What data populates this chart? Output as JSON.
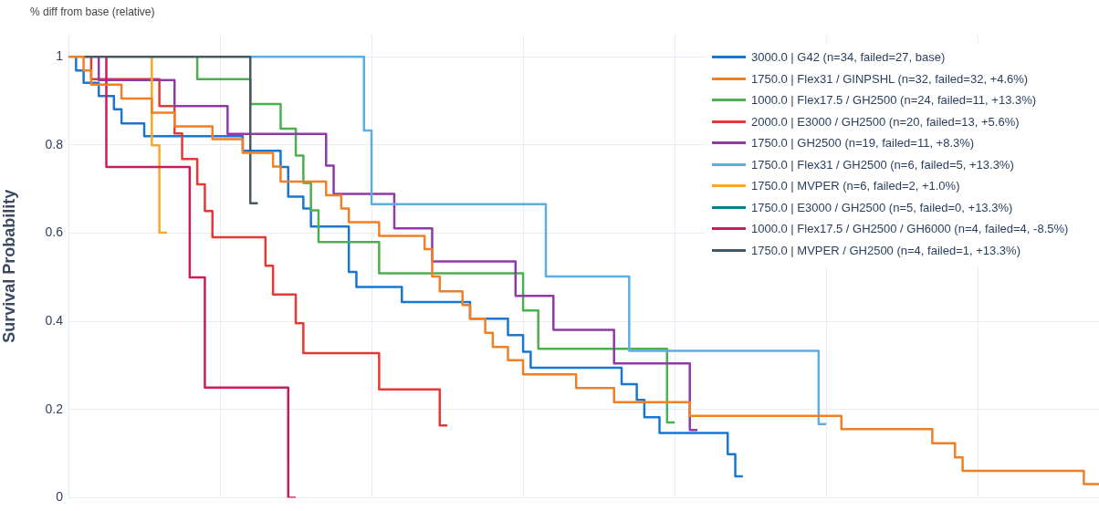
{
  "chart_data": {
    "type": "step",
    "title": "% diff from base (relative)",
    "ylabel": "Survival Probability",
    "categories": [
      null,
      null,
      null,
      null,
      null,
      null,
      null,
      null,
      null,
      null,
      null,
      null,
      null,
      null,
      null,
      null,
      null,
      null,
      null,
      null,
      null,
      null,
      null,
      null,
      null,
      null,
      null,
      null,
      null,
      null,
      null,
      null,
      null,
      null,
      null,
      null,
      null,
      null,
      null,
      null,
      null,
      null,
      null,
      null,
      null,
      null,
      null,
      null,
      null,
      null,
      null,
      null,
      null,
      null,
      null,
      null,
      null,
      null,
      null,
      null,
      null,
      null,
      null,
      null,
      null,
      null,
      null,
      null,
      null,
      null,
      null,
      null,
      null,
      null,
      null,
      null,
      null,
      null,
      null,
      null,
      null,
      null,
      null,
      null,
      null,
      null,
      null,
      null,
      null,
      null,
      null,
      null,
      null,
      null,
      null,
      null,
      null,
      null,
      null,
      null,
      null,
      null,
      null,
      null,
      null,
      null,
      null,
      null,
      null,
      null,
      null,
      null,
      null,
      null,
      null,
      null,
      null,
      null,
      null,
      null,
      null,
      null,
      null,
      null,
      null,
      null,
      null,
      null,
      null,
      null,
      null,
      null,
      null,
      null,
      null,
      null,
      null
    ],
    "ylim": [
      0,
      1.05
    ],
    "yticks": [
      0,
      0.2,
      0.4,
      0.6,
      0.8,
      1
    ],
    "tick_labels": "y",
    "grid": true,
    "legend": "top right",
    "series": [
      {
        "name": "3000.0 | G42 (n=34, failed=27, base)",
        "color": "#1976d2",
        "values": [
          null,
          1,
          0.969,
          0.941,
          0.941,
          0.911,
          0.911,
          0.881,
          0.849,
          0.849,
          0.849,
          0.82,
          0.82,
          0.82,
          0.82,
          0.82,
          0.82,
          0.82,
          0.82,
          0.82,
          0.82,
          0.82,
          0.82,
          0.82,
          0.787,
          0.787,
          0.787,
          0.787,
          0.787,
          0.75,
          0.683,
          0.683,
          0.656,
          0.615,
          0.615,
          0.615,
          0.615,
          0.615,
          0.512,
          0.478,
          0.478,
          0.478,
          0.478,
          0.478,
          0.478,
          0.444,
          0.444,
          0.444,
          0.444,
          0.444,
          0.444,
          0.444,
          0.444,
          0.444,
          0.406,
          0.406,
          0.406,
          0.406,
          0.406,
          0.369,
          0.369,
          0.331,
          0.295,
          0.295,
          0.295,
          0.295,
          0.295,
          0.295,
          0.295,
          0.295,
          0.295,
          0.295,
          0.295,
          0.295,
          0.258,
          0.258,
          0.222,
          0.183,
          0.183,
          0.147,
          0.147,
          0.147,
          0.147,
          0.147,
          0.147,
          0.147,
          0.147,
          0.147,
          0.099,
          0.049,
          null,
          null,
          null,
          null,
          null,
          null,
          null,
          null,
          null,
          null,
          null,
          null,
          null,
          null,
          null,
          null,
          null,
          null,
          null,
          null,
          null,
          null,
          null,
          null,
          null,
          null,
          null,
          null,
          null,
          null,
          null,
          null,
          null,
          null,
          null,
          null,
          null,
          null,
          null,
          null,
          null,
          null,
          null,
          null,
          null,
          null,
          null
        ]
      },
      {
        "name": "1750.0 | Flex31 / GINPSHL (n=32, failed=32, +4.6%)",
        "color": "#f07f26",
        "values": [
          1,
          1,
          1,
          0.969,
          0.937,
          0.937,
          0.937,
          0.937,
          0.905,
          0.905,
          0.905,
          0.905,
          0.873,
          0.873,
          0.873,
          0.842,
          0.842,
          0.842,
          0.842,
          0.842,
          0.813,
          0.813,
          0.813,
          0.813,
          0.782,
          0.782,
          0.782,
          0.782,
          0.751,
          0.717,
          0.717,
          0.717,
          0.717,
          0.717,
          0.717,
          0.686,
          0.686,
          0.656,
          0.625,
          0.625,
          0.625,
          0.625,
          0.594,
          0.594,
          0.594,
          0.594,
          0.594,
          0.594,
          0.564,
          0.502,
          0.468,
          0.468,
          0.468,
          0.437,
          0.406,
          0.406,
          0.374,
          0.342,
          0.342,
          0.312,
          0.312,
          0.28,
          0.28,
          0.28,
          0.28,
          0.28,
          0.28,
          0.28,
          0.249,
          0.249,
          0.249,
          0.249,
          0.249,
          0.217,
          0.217,
          0.217,
          0.217,
          0.217,
          0.217,
          0.217,
          0.217,
          0.217,
          0.217,
          0.186,
          0.186,
          0.186,
          0.186,
          0.186,
          0.186,
          0.186,
          0.186,
          0.186,
          0.186,
          0.186,
          0.186,
          0.186,
          0.186,
          0.186,
          0.186,
          0.186,
          0.186,
          0.186,
          0.186,
          0.156,
          0.156,
          0.156,
          0.156,
          0.156,
          0.156,
          0.156,
          0.156,
          0.156,
          0.156,
          0.156,
          0.156,
          0.124,
          0.124,
          0.124,
          0.092,
          0.061,
          0.061,
          0.061,
          0.061,
          0.061,
          0.061,
          0.061,
          0.061,
          0.061,
          0.061,
          0.061,
          0.061,
          0.061,
          0.061,
          0.061,
          0.061,
          0.031,
          0.031
        ]
      },
      {
        "name": "1000.0 | Flex17.5 / GH2500 (n=24, failed=11, +13.3%)",
        "color": "#4caf50",
        "values": [
          null,
          null,
          null,
          null,
          null,
          null,
          null,
          null,
          null,
          null,
          null,
          null,
          null,
          null,
          null,
          null,
          null,
          1,
          0.949,
          0.949,
          0.949,
          0.949,
          0.949,
          0.949,
          0.949,
          0.893,
          0.893,
          0.893,
          0.893,
          0.837,
          0.837,
          0.776,
          0.714,
          0.652,
          0.58,
          0.58,
          0.58,
          0.58,
          0.58,
          0.58,
          0.58,
          0.58,
          0.509,
          0.509,
          0.509,
          0.509,
          0.509,
          0.509,
          0.509,
          0.509,
          0.509,
          0.509,
          0.509,
          0.509,
          0.509,
          0.509,
          0.509,
          0.509,
          0.509,
          0.509,
          0.509,
          0.425,
          0.425,
          0.338,
          0.338,
          0.338,
          0.338,
          0.338,
          0.338,
          0.338,
          0.338,
          0.338,
          0.338,
          0.338,
          0.338,
          0.338,
          0.338,
          0.338,
          0.338,
          0.338,
          0.171,
          null,
          null,
          null,
          null,
          null,
          null,
          null,
          null,
          null,
          null,
          null,
          null,
          null,
          null,
          null,
          null,
          null,
          null,
          null,
          null,
          null,
          null,
          null,
          null,
          null,
          null,
          null,
          null,
          null,
          null,
          null,
          null,
          null,
          null,
          null,
          null,
          null,
          null,
          null,
          null,
          null,
          null,
          null,
          null,
          null,
          null,
          null,
          null,
          null,
          null,
          null,
          null,
          null,
          null,
          null,
          null
        ]
      },
      {
        "name": "2000.0 | E3000 / GH2500 (n=20, failed=13, +5.6%)",
        "color": "#e53935",
        "values": [
          null,
          null,
          null,
          1,
          0.949,
          0.949,
          0.949,
          0.949,
          0.949,
          0.949,
          0.949,
          0.949,
          0.949,
          0.888,
          0.888,
          0.826,
          0.768,
          0.768,
          0.711,
          0.65,
          0.591,
          0.591,
          0.591,
          0.591,
          0.591,
          0.591,
          0.591,
          0.526,
          0.461,
          0.461,
          0.461,
          0.396,
          0.328,
          0.328,
          0.328,
          0.328,
          0.328,
          0.328,
          0.328,
          0.328,
          0.328,
          0.328,
          0.246,
          0.246,
          0.246,
          0.246,
          0.246,
          0.246,
          0.246,
          0.246,
          0.164,
          null,
          null,
          null,
          null,
          null,
          null,
          null,
          null,
          null,
          null,
          null,
          null,
          null,
          null,
          null,
          null,
          null,
          null,
          null,
          null,
          null,
          null,
          null,
          null,
          null,
          null,
          null,
          null,
          null,
          null,
          null,
          null,
          null,
          null,
          null,
          null,
          null,
          null,
          null,
          null,
          null,
          null,
          null,
          null,
          null,
          null,
          null,
          null,
          null,
          null,
          null,
          null,
          null,
          null,
          null,
          null,
          null,
          null,
          null,
          null,
          null,
          null,
          null,
          null,
          null,
          null,
          null,
          null,
          null,
          null,
          null,
          null,
          null,
          null,
          null,
          null,
          null,
          null,
          null,
          null,
          null,
          null,
          null,
          null,
          null,
          null
        ]
      },
      {
        "name": "1750.0 | GH2500 (n=19, failed=11, +8.3%)",
        "color": "#8e3ba6",
        "values": [
          null,
          null,
          null,
          null,
          1,
          0.947,
          0.947,
          0.947,
          0.947,
          0.947,
          0.947,
          0.947,
          0.947,
          0.947,
          0.947,
          0.888,
          0.888,
          0.888,
          0.888,
          0.888,
          0.888,
          0.888,
          0.825,
          0.825,
          0.825,
          0.825,
          0.825,
          0.825,
          0.825,
          0.825,
          0.825,
          0.825,
          0.825,
          0.825,
          0.825,
          0.753,
          0.689,
          0.689,
          0.689,
          0.689,
          0.689,
          0.689,
          0.689,
          0.689,
          0.611,
          0.611,
          0.611,
          0.611,
          0.611,
          0.536,
          0.536,
          0.536,
          0.536,
          0.536,
          0.536,
          0.536,
          0.536,
          0.536,
          0.536,
          0.536,
          0.458,
          0.458,
          0.458,
          0.458,
          0.458,
          0.381,
          0.381,
          0.381,
          0.381,
          0.381,
          0.381,
          0.381,
          0.381,
          0.305,
          0.305,
          0.305,
          0.305,
          0.305,
          0.305,
          0.305,
          0.305,
          0.305,
          0.305,
          0.154,
          null,
          null,
          null,
          null,
          null,
          null,
          null,
          null,
          null,
          null,
          null,
          null,
          null,
          null,
          null,
          null,
          null,
          null,
          null,
          null,
          null,
          null,
          null,
          null,
          null,
          null,
          null,
          null,
          null,
          null,
          null,
          null,
          null,
          null,
          null,
          null,
          null,
          null,
          null,
          null,
          null,
          null,
          null,
          null,
          null,
          null,
          null,
          null,
          null,
          null,
          null,
          null,
          null
        ]
      },
      {
        "name": "1750.0 | Flex31 / GH2500 (n=6, failed=5, +13.3%)",
        "color": "#5dade2",
        "values": [
          null,
          null,
          null,
          null,
          null,
          null,
          null,
          null,
          null,
          null,
          null,
          null,
          null,
          null,
          null,
          null,
          null,
          null,
          null,
          null,
          null,
          null,
          null,
          null,
          1,
          1,
          1,
          1,
          1,
          1,
          1,
          1,
          1,
          1,
          1,
          1,
          1,
          1,
          1,
          1,
          0.833,
          0.666,
          0.666,
          0.666,
          0.666,
          0.666,
          0.666,
          0.666,
          0.666,
          0.666,
          0.666,
          0.666,
          0.666,
          0.666,
          0.666,
          0.666,
          0.666,
          0.666,
          0.666,
          0.666,
          0.666,
          0.666,
          0.666,
          0.666,
          0.502,
          0.502,
          0.502,
          0.502,
          0.502,
          0.502,
          0.502,
          0.502,
          0.502,
          0.502,
          0.502,
          0.333,
          0.333,
          0.333,
          0.333,
          0.333,
          0.333,
          0.333,
          0.333,
          0.333,
          0.333,
          0.333,
          0.333,
          0.333,
          0.333,
          0.333,
          0.333,
          0.333,
          0.333,
          0.333,
          0.333,
          0.333,
          0.333,
          0.333,
          0.333,
          0.333,
          0.167,
          null,
          null,
          null,
          null,
          null,
          null,
          null,
          null,
          null,
          null,
          null,
          null,
          null,
          null,
          null,
          null,
          null,
          null,
          null,
          null,
          null,
          null,
          null,
          null,
          null,
          null,
          null,
          null,
          null,
          null,
          null,
          null,
          null,
          null,
          null,
          null
        ]
      },
      {
        "name": "1750.0 | MVPER (n=6, failed=2, +1.0%)",
        "color": "#f9a825",
        "values": [
          null,
          null,
          null,
          null,
          null,
          null,
          null,
          null,
          null,
          null,
          null,
          1,
          0.799,
          0.601,
          null,
          null,
          null,
          null,
          null,
          null,
          null,
          null,
          null,
          null,
          null,
          null,
          null,
          null,
          null,
          null,
          null,
          null,
          null,
          null,
          null,
          null,
          null,
          null,
          null,
          null,
          null,
          null,
          null,
          null,
          null,
          null,
          null,
          null,
          null,
          null,
          null,
          null,
          null,
          null,
          null,
          null,
          null,
          null,
          null,
          null,
          null,
          null,
          null,
          null,
          null,
          null,
          null,
          null,
          null,
          null,
          null,
          null,
          null,
          null,
          null,
          null,
          null,
          null,
          null,
          null,
          null,
          null,
          null,
          null,
          null,
          null,
          null,
          null,
          null,
          null,
          null,
          null,
          null,
          null,
          null,
          null,
          null,
          null,
          null,
          null,
          null,
          null,
          null,
          null,
          null,
          null,
          null,
          null,
          null,
          null,
          null,
          null,
          null,
          null,
          null,
          null,
          null,
          null,
          null,
          null,
          null,
          null,
          null,
          null,
          null,
          null,
          null,
          null,
          null,
          null,
          null,
          null,
          null,
          null,
          null,
          null,
          null
        ]
      },
      {
        "name": "1750.0 | E3000 / GH2500 (n=5, failed=0, +13.3%)",
        "color": "#00838f",
        "values": [
          null,
          null,
          null,
          null,
          null,
          null,
          null,
          null,
          null,
          null,
          null,
          null,
          null,
          null,
          null,
          null,
          null,
          null,
          null,
          null,
          null,
          null,
          null,
          null,
          null,
          null,
          null,
          null,
          null,
          null,
          null,
          null,
          null,
          null,
          null,
          null,
          null,
          null,
          null,
          null,
          null,
          null,
          null,
          null,
          null,
          null,
          null,
          null,
          null,
          null,
          null,
          null,
          null,
          null,
          null,
          null,
          null,
          null,
          null,
          null,
          null,
          null,
          null,
          null,
          null,
          null,
          null,
          null,
          null,
          null,
          null,
          null,
          null,
          null,
          null,
          null,
          null,
          null,
          null,
          null,
          null,
          null,
          null,
          null,
          null,
          null,
          null,
          null,
          null,
          null,
          null,
          null,
          null,
          null,
          null,
          null,
          null,
          null,
          null,
          null,
          null,
          null,
          null,
          null,
          null,
          null,
          null,
          null,
          null,
          null,
          null,
          null,
          null,
          null,
          null,
          null,
          null,
          null,
          null,
          null,
          null,
          null,
          null,
          null,
          null,
          null,
          null,
          null,
          null,
          null,
          null,
          null,
          null,
          null,
          null,
          null,
          null
        ]
      },
      {
        "name": "1000.0 | Flex17.5 / GH2500 / GH6000 (n=4, failed=4, -8.5%)",
        "color": "#d0185c",
        "values": [
          null,
          null,
          null,
          null,
          null,
          1,
          0.75,
          0.75,
          0.75,
          0.75,
          0.75,
          0.75,
          0.75,
          0.75,
          0.75,
          0.75,
          0.75,
          0.5,
          0.5,
          0.25,
          0.25,
          0.25,
          0.25,
          0.25,
          0.25,
          0.25,
          0.25,
          0.25,
          0.25,
          0.25,
          0,
          null,
          null,
          null,
          null,
          null,
          null,
          null,
          null,
          null,
          null,
          null,
          null,
          null,
          null,
          null,
          null,
          null,
          null,
          null,
          null,
          null,
          null,
          null,
          null,
          null,
          null,
          null,
          null,
          null,
          null,
          null,
          null,
          null,
          null,
          null,
          null,
          null,
          null,
          null,
          null,
          null,
          null,
          null,
          null,
          null,
          null,
          null,
          null,
          null,
          null,
          null,
          null,
          null,
          null,
          null,
          null,
          null,
          null,
          null,
          null,
          null,
          null,
          null,
          null,
          null,
          null,
          null,
          null,
          null,
          null,
          null,
          null,
          null,
          null,
          null,
          null,
          null,
          null,
          null,
          null,
          null,
          null,
          null,
          null,
          null,
          null,
          null,
          null,
          null,
          null,
          null,
          null,
          null,
          null,
          null,
          null,
          null,
          null,
          null,
          null,
          null,
          null,
          null,
          null,
          null,
          null
        ]
      },
      {
        "name": "1750.0 | MVPER / GH2500 (n=4, failed=1, +13.3%)",
        "color": "#455a64",
        "values": [
          null,
          null,
          1,
          1,
          1,
          1,
          1,
          1,
          1,
          1,
          1,
          1,
          1,
          1,
          1,
          1,
          1,
          1,
          1,
          1,
          1,
          1,
          1,
          1,
          1,
          0.668,
          null,
          null,
          null,
          null,
          null,
          null,
          null,
          null,
          null,
          null,
          null,
          null,
          null,
          null,
          null,
          null,
          null,
          null,
          null,
          null,
          null,
          null,
          null,
          null,
          null,
          null,
          null,
          null,
          null,
          null,
          null,
          null,
          null,
          null,
          null,
          null,
          null,
          null,
          null,
          null,
          null,
          null,
          null,
          null,
          null,
          null,
          null,
          null,
          null,
          null,
          null,
          null,
          null,
          null,
          null,
          null,
          null,
          null,
          null,
          null,
          null,
          null,
          null,
          null,
          null,
          null,
          null,
          null,
          null,
          null,
          null,
          null,
          null,
          null,
          null,
          null,
          null,
          null,
          null,
          null,
          null,
          null,
          null,
          null,
          null,
          null,
          null,
          null,
          null,
          null,
          null,
          null,
          null,
          null,
          null,
          null,
          null,
          null,
          null,
          null,
          null,
          null,
          null,
          null,
          null,
          null,
          null,
          null,
          null,
          null,
          null
        ]
      }
    ]
  }
}
